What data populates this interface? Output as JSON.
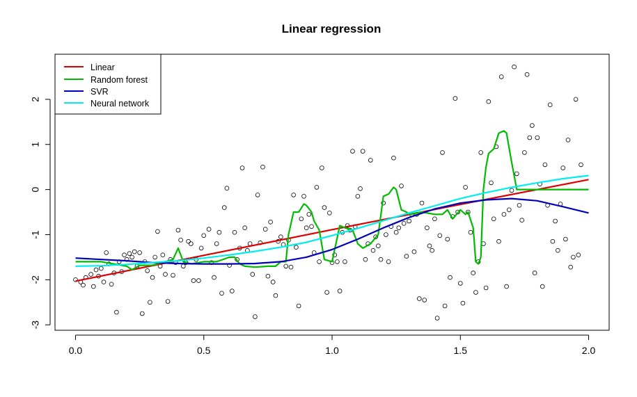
{
  "chart_data": {
    "type": "scatter",
    "title": "Linear regression",
    "xlabel": "",
    "ylabel": "",
    "xlim": [
      -0.08,
      2.08
    ],
    "ylim": [
      -3.12,
      3.0
    ],
    "x_ticks": [
      0.0,
      0.5,
      1.0,
      1.5,
      2.0
    ],
    "x_tick_labels": [
      "0.0",
      "0.5",
      "1.0",
      "1.5",
      "2.0"
    ],
    "y_ticks": [
      -3,
      -2,
      -1,
      0,
      1,
      2
    ],
    "y_tick_labels": [
      "-3",
      "-2",
      "-1",
      "0",
      "1",
      "2"
    ],
    "grid": false,
    "legend_position": "top-left",
    "points": [
      [
        0.0,
        -2.0
      ],
      [
        0.02,
        -2.05
      ],
      [
        0.03,
        -2.12
      ],
      [
        0.04,
        -1.95
      ],
      [
        0.06,
        -1.88
      ],
      [
        0.07,
        -2.15
      ],
      [
        0.08,
        -1.78
      ],
      [
        0.09,
        -1.92
      ],
      [
        0.1,
        -1.75
      ],
      [
        0.11,
        -2.05
      ],
      [
        0.12,
        -1.4
      ],
      [
        0.13,
        -1.65
      ],
      [
        0.14,
        -2.1
      ],
      [
        0.15,
        -1.85
      ],
      [
        0.16,
        -2.72
      ],
      [
        0.17,
        -1.6
      ],
      [
        0.18,
        -1.82
      ],
      [
        0.19,
        -1.45
      ],
      [
        0.2,
        -1.55
      ],
      [
        0.21,
        -1.42
      ],
      [
        0.22,
        -1.5
      ],
      [
        0.23,
        -1.38
      ],
      [
        0.24,
        -1.7
      ],
      [
        0.25,
        -1.4
      ],
      [
        0.26,
        -2.75
      ],
      [
        0.27,
        -1.6
      ],
      [
        0.28,
        -1.8
      ],
      [
        0.29,
        -2.5
      ],
      [
        0.3,
        -1.95
      ],
      [
        0.31,
        -1.5
      ],
      [
        0.32,
        -0.93
      ],
      [
        0.33,
        -1.7
      ],
      [
        0.34,
        -1.45
      ],
      [
        0.35,
        -1.88
      ],
      [
        0.36,
        -2.48
      ],
      [
        0.37,
        -1.55
      ],
      [
        0.38,
        -1.9
      ],
      [
        0.39,
        -1.62
      ],
      [
        0.4,
        -0.9
      ],
      [
        0.41,
        -1.12
      ],
      [
        0.42,
        -1.7
      ],
      [
        0.43,
        -1.62
      ],
      [
        0.44,
        -1.15
      ],
      [
        0.45,
        -1.2
      ],
      [
        0.46,
        -2.02
      ],
      [
        0.47,
        -1.55
      ],
      [
        0.48,
        -2.02
      ],
      [
        0.49,
        -1.3
      ],
      [
        0.5,
        -1.02
      ],
      [
        0.52,
        -0.88
      ],
      [
        0.53,
        -1.62
      ],
      [
        0.54,
        -1.95
      ],
      [
        0.55,
        -1.2
      ],
      [
        0.56,
        -0.95
      ],
      [
        0.57,
        -2.3
      ],
      [
        0.58,
        -0.4
      ],
      [
        0.59,
        0.03
      ],
      [
        0.6,
        -1.68
      ],
      [
        0.61,
        -2.25
      ],
      [
        0.62,
        -0.95
      ],
      [
        0.63,
        -1.55
      ],
      [
        0.64,
        -1.3
      ],
      [
        0.65,
        0.48
      ],
      [
        0.66,
        -0.85
      ],
      [
        0.67,
        -1.35
      ],
      [
        0.68,
        -1.2
      ],
      [
        0.69,
        -1.88
      ],
      [
        0.7,
        -2.82
      ],
      [
        0.71,
        -0.12
      ],
      [
        0.72,
        -1.18
      ],
      [
        0.73,
        0.5
      ],
      [
        0.74,
        -0.88
      ],
      [
        0.75,
        -1.92
      ],
      [
        0.76,
        -0.72
      ],
      [
        0.77,
        -2.05
      ],
      [
        0.78,
        -2.35
      ],
      [
        0.79,
        -1.15
      ],
      [
        0.8,
        -1.05
      ],
      [
        0.81,
        -1.22
      ],
      [
        0.82,
        -1.7
      ],
      [
        0.83,
        -1.12
      ],
      [
        0.84,
        -1.72
      ],
      [
        0.85,
        -0.12
      ],
      [
        0.86,
        -1.28
      ],
      [
        0.87,
        -2.58
      ],
      [
        0.88,
        -0.65
      ],
      [
        0.89,
        -0.15
      ],
      [
        0.9,
        -0.85
      ],
      [
        0.91,
        -0.55
      ],
      [
        0.92,
        -0.82
      ],
      [
        0.93,
        -1.4
      ],
      [
        0.94,
        0.05
      ],
      [
        0.95,
        -1.6
      ],
      [
        0.96,
        0.48
      ],
      [
        0.97,
        -0.4
      ],
      [
        0.98,
        -2.28
      ],
      [
        0.99,
        -0.52
      ],
      [
        1.0,
        -1.62
      ],
      [
        1.01,
        -1.45
      ],
      [
        1.02,
        -1.6
      ],
      [
        1.03,
        -2.25
      ],
      [
        1.04,
        -0.95
      ],
      [
        1.05,
        -1.6
      ],
      [
        1.06,
        -0.8
      ],
      [
        1.07,
        -0.9
      ],
      [
        1.08,
        0.85
      ],
      [
        1.09,
        -0.82
      ],
      [
        1.1,
        -0.15
      ],
      [
        1.11,
        0.02
      ],
      [
        1.12,
        0.85
      ],
      [
        1.13,
        -1.55
      ],
      [
        1.14,
        -1.2
      ],
      [
        1.15,
        0.65
      ],
      [
        1.16,
        -1.35
      ],
      [
        1.17,
        -1.05
      ],
      [
        1.18,
        -1.25
      ],
      [
        1.19,
        -1.55
      ],
      [
        1.2,
        -0.3
      ],
      [
        1.21,
        -1.0
      ],
      [
        1.22,
        -1.6
      ],
      [
        1.23,
        -0.82
      ],
      [
        1.24,
        0.7
      ],
      [
        1.25,
        -0.95
      ],
      [
        1.26,
        -0.85
      ],
      [
        1.27,
        0.08
      ],
      [
        1.28,
        -0.75
      ],
      [
        1.29,
        -1.48
      ],
      [
        1.3,
        -0.7
      ],
      [
        1.31,
        -0.55
      ],
      [
        1.32,
        -1.38
      ],
      [
        1.33,
        -0.55
      ],
      [
        1.34,
        -2.42
      ],
      [
        1.35,
        -0.3
      ],
      [
        1.36,
        -2.45
      ],
      [
        1.37,
        -0.85
      ],
      [
        1.38,
        -1.25
      ],
      [
        1.39,
        -1.35
      ],
      [
        1.4,
        -0.65
      ],
      [
        1.41,
        -2.85
      ],
      [
        1.42,
        -1.02
      ],
      [
        1.43,
        0.82
      ],
      [
        1.44,
        -2.58
      ],
      [
        1.45,
        -1.1
      ],
      [
        1.46,
        -1.95
      ],
      [
        1.47,
        -0.6
      ],
      [
        1.48,
        2.02
      ],
      [
        1.49,
        -0.5
      ],
      [
        1.5,
        -2.08
      ],
      [
        1.51,
        -2.52
      ],
      [
        1.52,
        0.05
      ],
      [
        1.53,
        -0.5
      ],
      [
        1.54,
        -0.95
      ],
      [
        1.55,
        -1.85
      ],
      [
        1.56,
        -2.28
      ],
      [
        1.57,
        -1.6
      ],
      [
        1.58,
        0.82
      ],
      [
        1.59,
        -1.2
      ],
      [
        1.6,
        -2.18
      ],
      [
        1.61,
        1.95
      ],
      [
        1.62,
        0.15
      ],
      [
        1.63,
        -0.65
      ],
      [
        1.64,
        0.95
      ],
      [
        1.65,
        -1.15
      ],
      [
        1.66,
        2.5
      ],
      [
        1.67,
        -0.55
      ],
      [
        1.68,
        -2.15
      ],
      [
        1.69,
        -0.45
      ],
      [
        1.7,
        -0.02
      ],
      [
        1.71,
        2.72
      ],
      [
        1.72,
        0.35
      ],
      [
        1.73,
        -0.35
      ],
      [
        1.74,
        -0.68
      ],
      [
        1.75,
        0.82
      ],
      [
        1.76,
        2.55
      ],
      [
        1.77,
        1.15
      ],
      [
        1.78,
        1.42
      ],
      [
        1.79,
        -1.85
      ],
      [
        1.8,
        1.15
      ],
      [
        1.81,
        0.12
      ],
      [
        1.82,
        -2.15
      ],
      [
        1.83,
        0.55
      ],
      [
        1.84,
        -0.35
      ],
      [
        1.85,
        1.88
      ],
      [
        1.86,
        -1.15
      ],
      [
        1.87,
        -0.7
      ],
      [
        1.88,
        -1.35
      ],
      [
        1.89,
        -0.32
      ],
      [
        1.9,
        0.48
      ],
      [
        1.91,
        -1.1
      ],
      [
        1.92,
        1.1
      ],
      [
        1.93,
        -1.72
      ],
      [
        1.94,
        -1.5
      ],
      [
        1.95,
        2.0
      ],
      [
        1.96,
        -1.45
      ],
      [
        1.97,
        0.55
      ]
    ],
    "series": [
      {
        "name": "Linear",
        "color": "#dd0000",
        "x": [
          0.0,
          0.5,
          1.0,
          1.5,
          2.0
        ],
        "y": [
          -2.03,
          -1.46,
          -0.89,
          -0.33,
          0.22
        ]
      },
      {
        "name": "Random forest",
        "color": "#00bb00",
        "x": [
          0.0,
          0.1,
          0.2,
          0.22,
          0.25,
          0.3,
          0.35,
          0.38,
          0.4,
          0.42,
          0.45,
          0.5,
          0.55,
          0.6,
          0.62,
          0.64,
          0.66,
          0.7,
          0.75,
          0.78,
          0.8,
          0.82,
          0.83,
          0.85,
          0.87,
          0.89,
          0.9,
          0.92,
          0.93,
          0.95,
          0.97,
          1.0,
          1.03,
          1.05,
          1.08,
          1.1,
          1.12,
          1.15,
          1.18,
          1.2,
          1.22,
          1.24,
          1.25,
          1.27,
          1.29,
          1.3,
          1.35,
          1.4,
          1.43,
          1.45,
          1.47,
          1.5,
          1.52,
          1.53,
          1.55,
          1.56,
          1.57,
          1.58,
          1.59,
          1.6,
          1.61,
          1.63,
          1.65,
          1.67,
          1.68,
          1.7,
          1.72,
          1.75,
          1.8,
          1.85,
          1.9,
          2.0
        ],
        "y": [
          -1.6,
          -1.6,
          -1.7,
          -1.78,
          -1.68,
          -1.68,
          -1.6,
          -1.55,
          -1.3,
          -1.6,
          -1.65,
          -1.6,
          -1.6,
          -1.5,
          -1.5,
          -1.65,
          -1.7,
          -1.72,
          -1.7,
          -1.7,
          -1.6,
          -1.6,
          -1.0,
          -0.5,
          -0.5,
          -0.32,
          -0.35,
          -0.5,
          -0.7,
          -0.9,
          -1.55,
          -1.6,
          -0.8,
          -0.85,
          -0.9,
          -1.2,
          -1.3,
          -1.2,
          -1.0,
          -0.15,
          -0.1,
          0.05,
          0.0,
          -0.45,
          -0.5,
          -0.55,
          -0.5,
          -0.55,
          -0.55,
          -0.45,
          -0.65,
          -0.45,
          -0.55,
          -0.5,
          -0.85,
          -1.6,
          -1.65,
          -1.5,
          0.0,
          0.5,
          0.8,
          0.9,
          1.25,
          1.3,
          1.25,
          0.6,
          0.0,
          0.0,
          0.0,
          0.0,
          0.0,
          0.0
        ]
      },
      {
        "name": "SVR",
        "color": "#0000bb",
        "x": [
          0.0,
          0.1,
          0.2,
          0.3,
          0.4,
          0.5,
          0.6,
          0.7,
          0.8,
          0.9,
          1.0,
          1.1,
          1.2,
          1.3,
          1.4,
          1.5,
          1.6,
          1.7,
          1.8,
          1.9,
          2.0
        ],
        "y": [
          -1.52,
          -1.55,
          -1.58,
          -1.62,
          -1.64,
          -1.65,
          -1.65,
          -1.64,
          -1.6,
          -1.5,
          -1.33,
          -1.1,
          -0.85,
          -0.62,
          -0.43,
          -0.3,
          -0.23,
          -0.2,
          -0.25,
          -0.38,
          -0.52
        ]
      },
      {
        "name": "Neural network",
        "color": "#00eeee",
        "x": [
          0.0,
          0.1,
          0.2,
          0.3,
          0.4,
          0.5,
          0.6,
          0.7,
          0.8,
          0.9,
          1.0,
          1.1,
          1.2,
          1.3,
          1.4,
          1.5,
          1.6,
          1.7,
          1.8,
          1.9,
          2.0
        ],
        "y": [
          -1.7,
          -1.69,
          -1.66,
          -1.62,
          -1.58,
          -1.52,
          -1.45,
          -1.37,
          -1.28,
          -1.17,
          -1.02,
          -0.86,
          -0.69,
          -0.52,
          -0.36,
          -0.2,
          -0.07,
          0.05,
          0.15,
          0.24,
          0.31
        ]
      }
    ]
  }
}
